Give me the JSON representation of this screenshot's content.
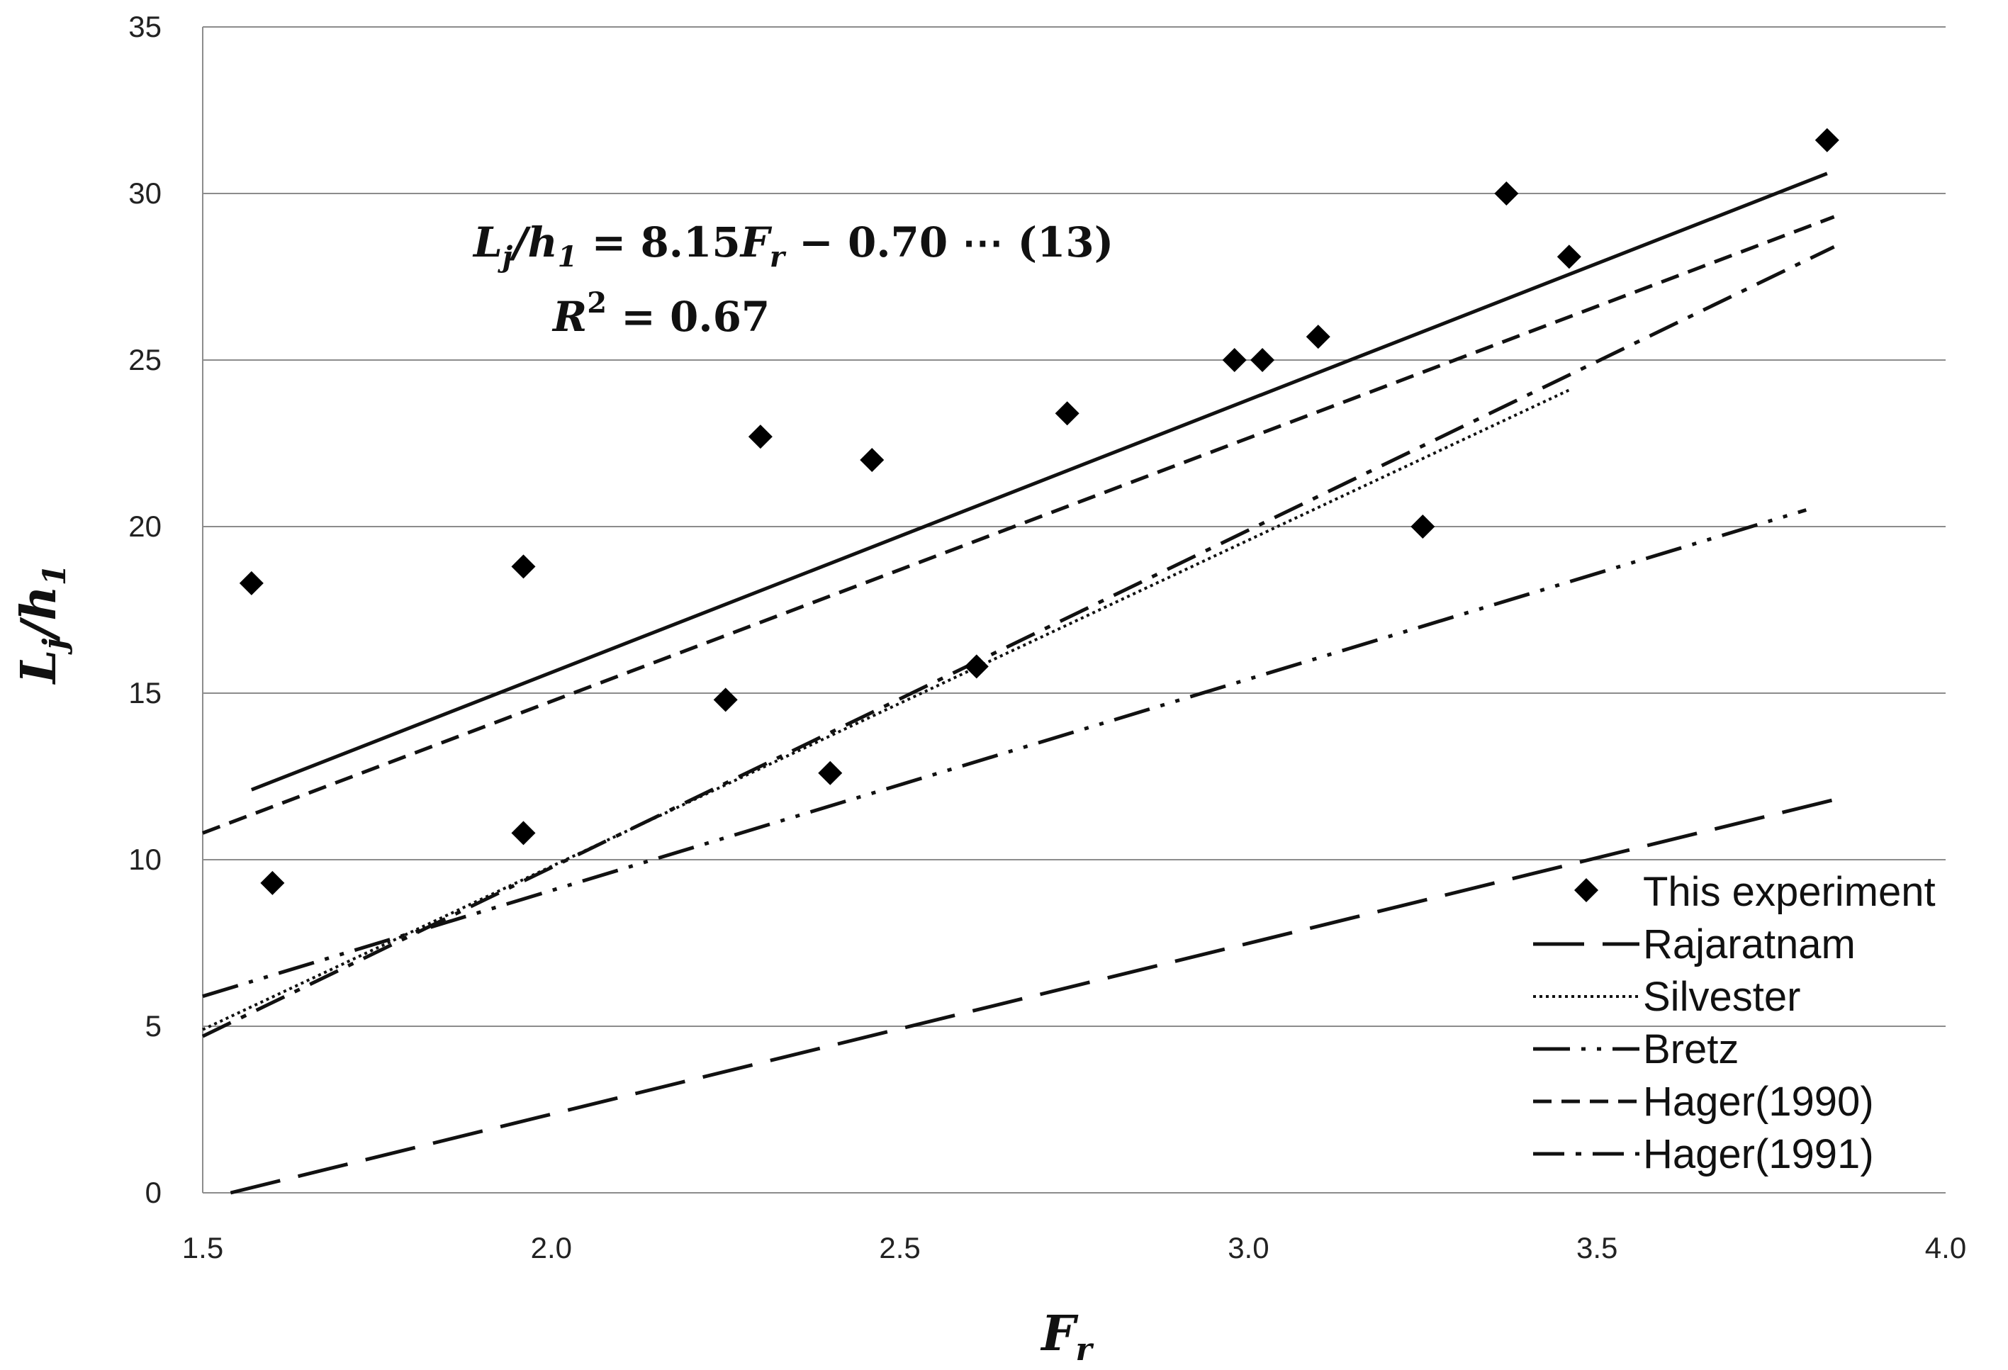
{
  "chart_data": {
    "type": "scatter",
    "xlabel": "F_r",
    "ylabel": "L_j/h_1",
    "xlim": [
      1.5,
      4.0
    ],
    "ylim": [
      0,
      35
    ],
    "x_ticks": [
      "1.5",
      "2.0",
      "2.5",
      "3.0",
      "3.5",
      "4.0"
    ],
    "y_ticks": [
      "0",
      "5",
      "10",
      "15",
      "20",
      "25",
      "30",
      "35"
    ],
    "grid": "horizontal",
    "legend_position": "bottom-right",
    "annotations": {
      "equation": "L_j/h_1 = 8.15F_r − 0.70   ⋯  (13)",
      "r_squared": "R^2 = 0.67"
    },
    "series": [
      {
        "name": "This experiment",
        "kind": "scatter",
        "marker": "diamond",
        "points": [
          [
            1.57,
            18.3
          ],
          [
            1.6,
            9.3
          ],
          [
            1.96,
            18.8
          ],
          [
            1.96,
            10.8
          ],
          [
            2.25,
            14.8
          ],
          [
            2.3,
            22.7
          ],
          [
            2.4,
            12.6
          ],
          [
            2.46,
            22.0
          ],
          [
            2.61,
            15.8
          ],
          [
            2.74,
            23.4
          ],
          [
            2.98,
            25.0
          ],
          [
            3.02,
            25.0
          ],
          [
            3.1,
            25.7
          ],
          [
            3.25,
            20.0
          ],
          [
            3.37,
            30.0
          ],
          [
            3.46,
            28.1
          ],
          [
            3.83,
            31.6
          ]
        ]
      },
      {
        "kind": "line",
        "style": "solid",
        "x": [
          1.57,
          3.83
        ],
        "y": [
          12.1,
          30.6
        ]
      },
      {
        "name": "Rajaratnam",
        "kind": "line",
        "style": "long-dash",
        "x": [
          1.54,
          3.84
        ],
        "y": [
          0.0,
          11.8
        ]
      },
      {
        "name": "Silvester",
        "kind": "line",
        "style": "dotted",
        "x": [
          1.5,
          3.46
        ],
        "y": [
          4.9,
          24.1
        ]
      },
      {
        "name": "Bretz",
        "kind": "line",
        "style": "dash-dot-dot",
        "x": [
          1.5,
          3.8
        ],
        "y": [
          5.9,
          20.5
        ]
      },
      {
        "name": "Hager(1990)",
        "kind": "line",
        "style": "short-dash",
        "x": [
          1.5,
          3.84
        ],
        "y": [
          10.8,
          29.3
        ]
      },
      {
        "name": "Hager(1991)",
        "kind": "line",
        "style": "dash-dot",
        "x": [
          1.5,
          3.84
        ],
        "y": [
          4.7,
          28.4
        ]
      }
    ]
  },
  "legend_items": [
    "This experiment",
    "Rajaratnam",
    "Silvester",
    "Bretz",
    "Hager(1990)",
    "Hager(1991)"
  ]
}
